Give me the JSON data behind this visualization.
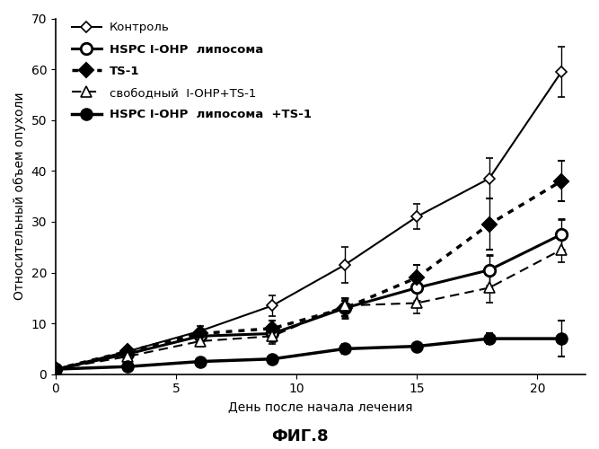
{
  "title": "ФИГ.8",
  "xlabel": "День после начала лечения",
  "ylabel": "Относительный объем опухоли",
  "xlim": [
    0,
    22
  ],
  "ylim": [
    0,
    70
  ],
  "xticks": [
    0,
    5,
    10,
    15,
    20
  ],
  "yticks": [
    0,
    10,
    20,
    30,
    40,
    50,
    60,
    70
  ],
  "series": [
    {
      "label": "Контроль",
      "x": [
        0,
        3,
        6,
        9,
        12,
        15,
        18,
        21
      ],
      "y": [
        1,
        4.5,
        8.5,
        13.5,
        21.5,
        31.0,
        38.5,
        59.5
      ],
      "yerr": [
        0.0,
        0.5,
        1.0,
        2.0,
        3.5,
        2.5,
        4.0,
        5.0
      ],
      "color": "black",
      "linestyle": "solid",
      "linewidth": 1.5,
      "marker": "D",
      "markersize": 6,
      "markerfacecolor": "white",
      "markeredgecolor": "black",
      "markeredgewidth": 1.2,
      "bold_label": false
    },
    {
      "label": "HSPC I-OHP  липосома",
      "x": [
        0,
        3,
        6,
        9,
        12,
        15,
        18,
        21
      ],
      "y": [
        1,
        4.0,
        7.5,
        8.0,
        13.0,
        17.0,
        20.5,
        27.5
      ],
      "yerr": [
        0.0,
        0.5,
        1.5,
        1.5,
        2.0,
        2.5,
        3.0,
        3.0
      ],
      "color": "black",
      "linestyle": "solid",
      "linewidth": 2.2,
      "marker": "o",
      "markersize": 9,
      "markerfacecolor": "white",
      "markeredgecolor": "black",
      "markeredgewidth": 2.0,
      "bold_label": true
    },
    {
      "label": "TS-1",
      "x": [
        0,
        3,
        6,
        9,
        12,
        15,
        18,
        21
      ],
      "y": [
        1,
        4.5,
        8.0,
        9.0,
        13.0,
        19.0,
        29.5,
        38.0
      ],
      "yerr": [
        0.0,
        0.5,
        1.0,
        1.5,
        1.5,
        2.5,
        5.0,
        4.0
      ],
      "color": "black",
      "linestyle": "dotted",
      "linewidth": 2.5,
      "marker": "D",
      "markersize": 8,
      "markerfacecolor": "black",
      "markeredgecolor": "black",
      "markeredgewidth": 1.5,
      "bold_label": true
    },
    {
      "label": "свободный  I-OHP+TS-1",
      "x": [
        0,
        3,
        6,
        9,
        12,
        15,
        18,
        21
      ],
      "y": [
        1,
        3.5,
        6.5,
        7.5,
        13.5,
        14.0,
        17.0,
        24.5
      ],
      "yerr": [
        0.0,
        0.5,
        1.0,
        1.5,
        1.5,
        2.0,
        3.0,
        2.5
      ],
      "color": "black",
      "linestyle": "dashed",
      "linewidth": 1.5,
      "marker": "^",
      "markersize": 8,
      "markerfacecolor": "white",
      "markeredgecolor": "black",
      "markeredgewidth": 1.2,
      "bold_label": false,
      "dashes": [
        5,
        3
      ]
    },
    {
      "label": "HSPC I-OHP  липосома  +TS-1",
      "x": [
        0,
        3,
        6,
        9,
        12,
        15,
        18,
        21
      ],
      "y": [
        1,
        1.5,
        2.5,
        3.0,
        5.0,
        5.5,
        7.0,
        7.0
      ],
      "yerr": [
        0.0,
        0.3,
        0.5,
        0.5,
        1.0,
        0.5,
        1.0,
        3.5
      ],
      "color": "black",
      "linestyle": "solid",
      "linewidth": 2.5,
      "marker": "o",
      "markersize": 9,
      "markerfacecolor": "black",
      "markeredgecolor": "black",
      "markeredgewidth": 1.5,
      "bold_label": true
    }
  ],
  "background_color": "#ffffff",
  "fontsize_title": 13,
  "fontsize_labels": 10,
  "fontsize_ticks": 10,
  "fontsize_legend": 9.5
}
